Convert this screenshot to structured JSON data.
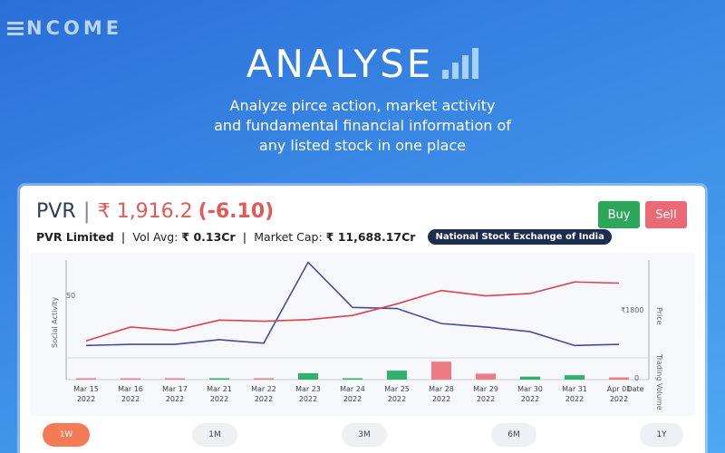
{
  "brand": {
    "name": "NCOME"
  },
  "hero": {
    "title": "ANALYSE",
    "subtitle_lines": [
      "Analyze pirce action, market activity",
      "and fundamental financial information of",
      "any listed stock in one place"
    ]
  },
  "stock": {
    "symbol": "PVR",
    "price": "₹ 1,916.2",
    "change": "(-6.10)",
    "company": "PVR Limited",
    "vol_avg_label": "Vol Avg:",
    "vol_avg_value": "₹ 0.13Cr",
    "mcap_label": "Market Cap:",
    "mcap_value": "₹ 11,688.17Cr",
    "exchange": "National Stock Exchange of India"
  },
  "actions": {
    "buy_label": "Buy",
    "sell_label": "Sell"
  },
  "colors": {
    "price_line": "#e04050",
    "social_line": "#4a4a9c",
    "vol_up": "#2fb26a",
    "vol_down": "#ee7a86",
    "buy": "#2ea65a",
    "sell": "#e96a74"
  },
  "ranges": [
    {
      "label": "1W",
      "active": true
    },
    {
      "label": "1M",
      "active": false
    },
    {
      "label": "3M",
      "active": false
    },
    {
      "label": "6M",
      "active": false
    },
    {
      "label": "1Y",
      "active": false
    }
  ],
  "chart_data": {
    "type": "line",
    "categories": [
      "Mar 15 2022",
      "Mar 16 2022",
      "Mar 17 2022",
      "Mar 21 2022",
      "Mar 22 2022",
      "Mar 23 2022",
      "Mar 24 2022",
      "Mar 25 2022",
      "Mar 28 2022",
      "Mar 29 2022",
      "Mar 30 2022",
      "Mar 31 2022",
      "Apr 01 2022"
    ],
    "xlabel": "Date",
    "left_axis": {
      "label": "Social Activity",
      "tick": "50",
      "tick_value": 50,
      "range": [
        0,
        80
      ]
    },
    "right_axis": {
      "label": "Price",
      "tick": "₹1800",
      "tick_value": 1800,
      "range": [
        1650,
        2050
      ]
    },
    "volume_axis": {
      "label": "Trading Volume",
      "tick": "0",
      "range": [
        0,
        10
      ]
    },
    "series": [
      {
        "axis": "price",
        "values": [
          1700,
          1760,
          1745,
          1790,
          1785,
          1792,
          1810,
          1860,
          1918,
          1895,
          1905,
          1955,
          1950
        ]
      },
      {
        "axis": "social",
        "values": [
          6,
          7,
          7,
          11,
          8,
          78,
          39,
          38,
          25,
          22,
          18,
          6,
          7
        ]
      },
      {
        "axis": "volume",
        "values": [
          0.5,
          0.3,
          0.3,
          0.5,
          0.4,
          3.2,
          0.6,
          4.5,
          9.0,
          3.0,
          1.5,
          2.2,
          1.1
        ],
        "direction": [
          "down",
          "down",
          "down",
          "up",
          "down",
          "up",
          "up",
          "up",
          "down",
          "down",
          "up",
          "up",
          "down"
        ]
      }
    ],
    "grid": false
  }
}
